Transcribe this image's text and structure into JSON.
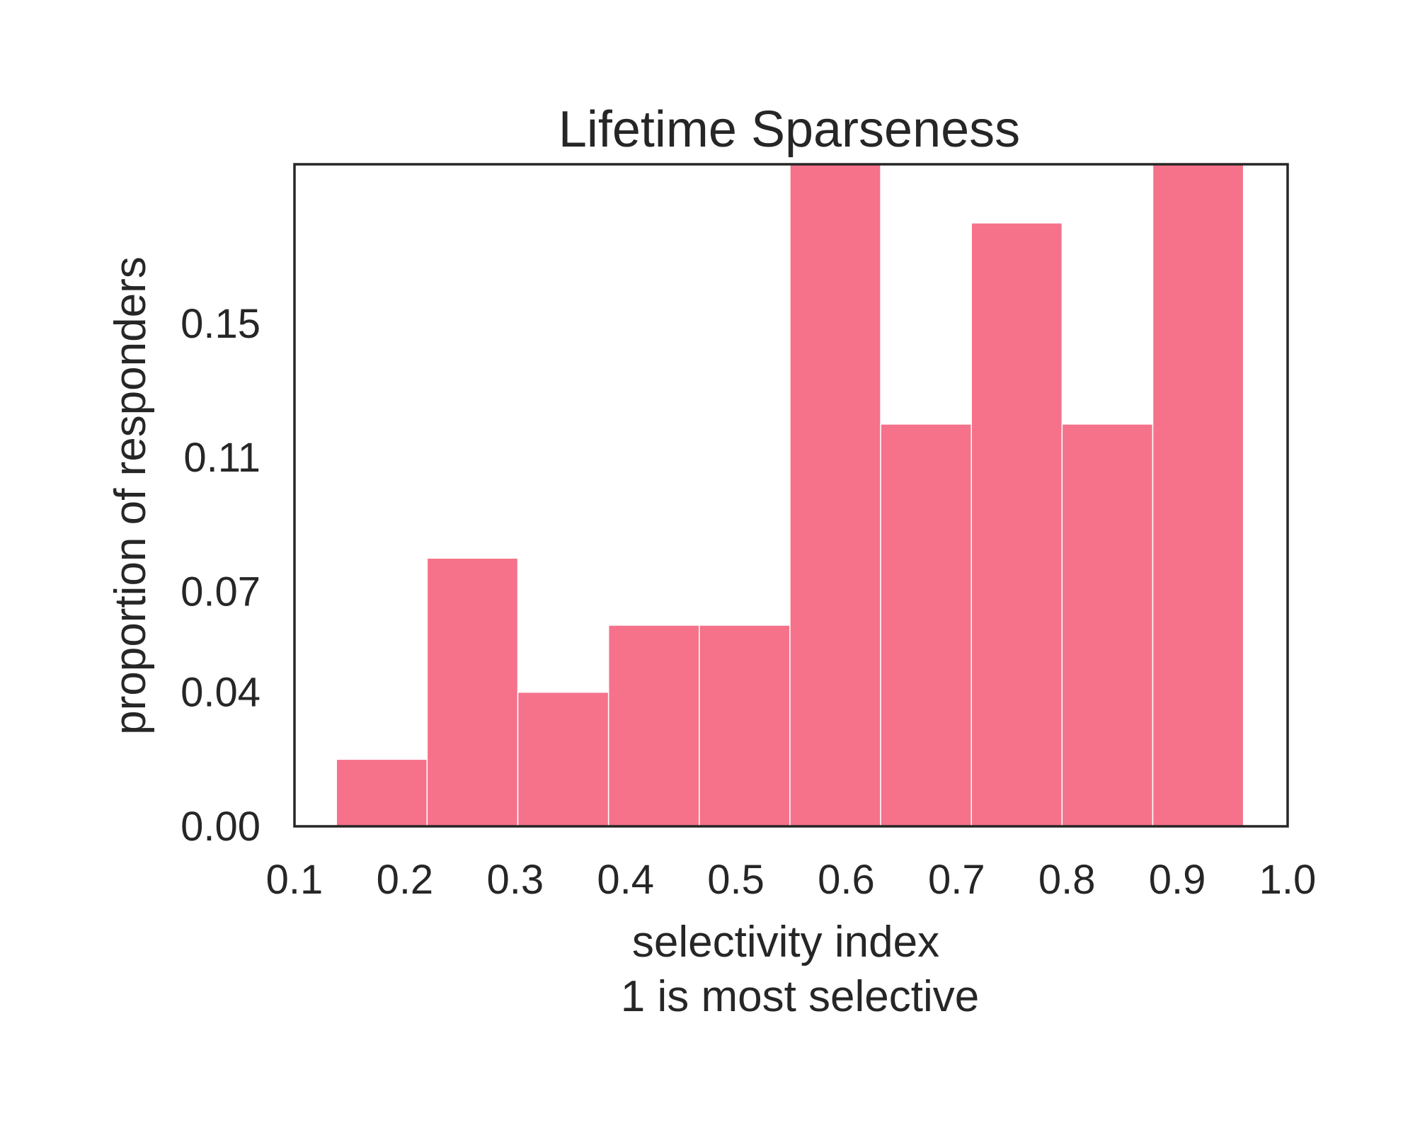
{
  "chart_data": {
    "type": "bar",
    "title": "Lifetime Sparseness",
    "xlabel": "selectivity index",
    "xlabel_line2": "1 is most selective",
    "ylabel": "proportion of responders",
    "x_ticks": [
      "0.1",
      "0.2",
      "0.3",
      "0.4",
      "0.5",
      "0.6",
      "0.7",
      "0.8",
      "0.9",
      "1.0"
    ],
    "y_ticks": [
      "0.00",
      "0.04",
      "0.07",
      "0.11",
      "0.15"
    ],
    "xlim": [
      0.1,
      1.0
    ],
    "ylim": [
      0,
      0.1975
    ],
    "bin_edges": [
      0.138,
      0.2202,
      0.3024,
      0.3846,
      0.4668,
      0.549,
      0.6312,
      0.7134,
      0.7956,
      0.8778,
      0.96
    ],
    "values": [
      0.02,
      0.08,
      0.04,
      0.06,
      0.06,
      0.2,
      0.12,
      0.18,
      0.12,
      0.2
    ],
    "bar_color": "#f5728a",
    "grid": false
  }
}
